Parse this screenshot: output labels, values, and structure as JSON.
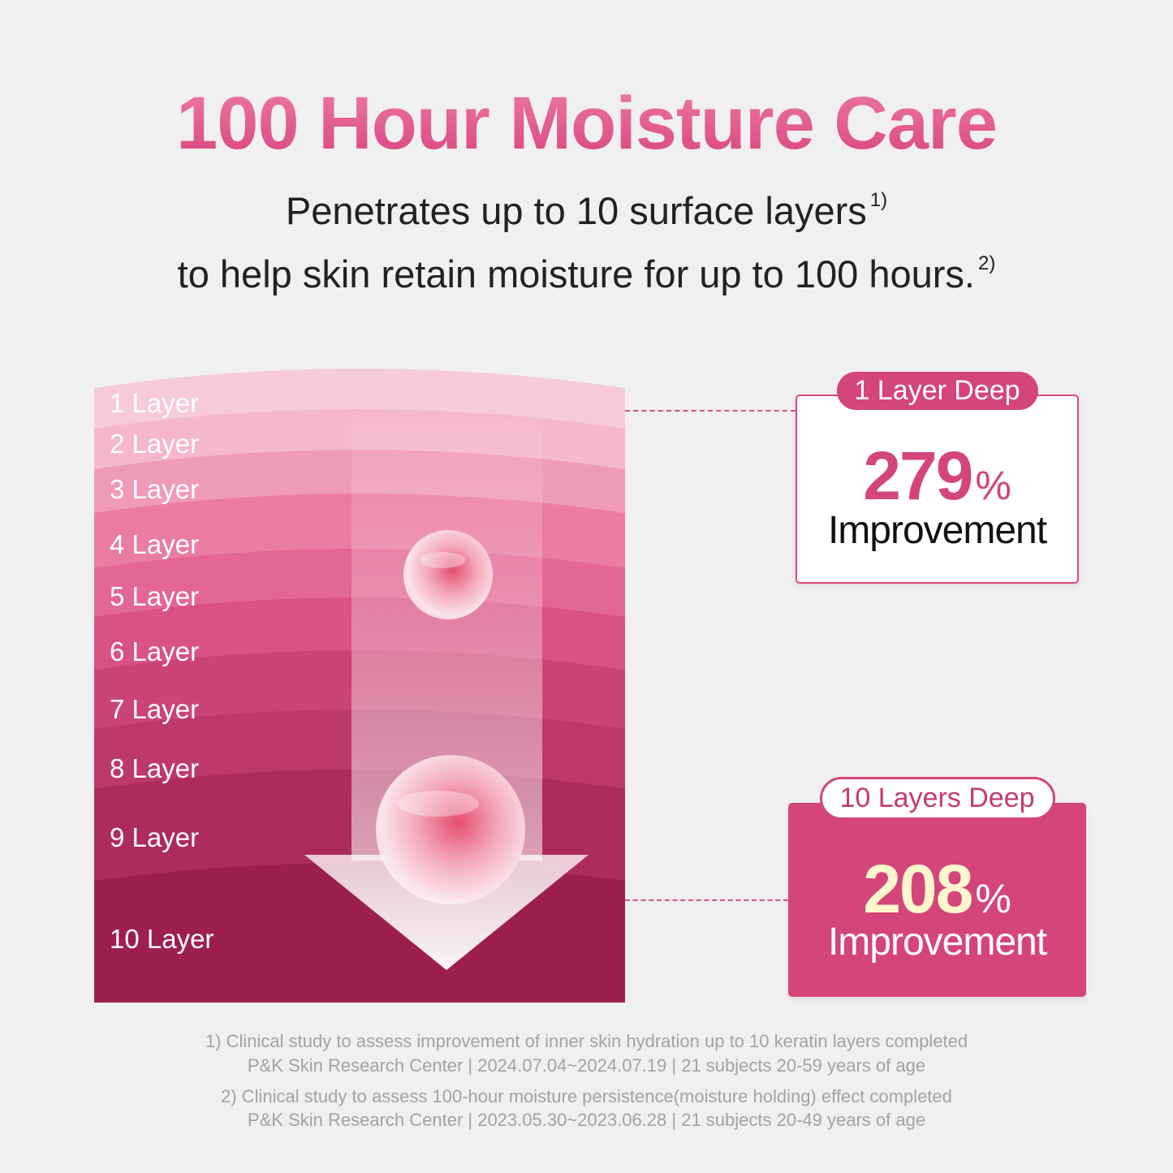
{
  "title": "100 Hour Moisture Care",
  "subtitle": {
    "line1": "Penetrates up to 10 surface layers",
    "line1_ref": "1)",
    "line2": "to help skin retain moisture for up to 100 hours.",
    "line2_ref": "2)"
  },
  "layers": [
    "1 Layer",
    "2 Layer",
    "3 Layer",
    "4 Layer",
    "5 Layer",
    "6 Layer",
    "7 Layer",
    "8 Layer",
    "9 Layer",
    "10 Layer"
  ],
  "layer_colors": [
    "#f7cadb",
    "#f5b7cd",
    "#f09ab9",
    "#ea7ba3",
    "#e36694",
    "#d85284",
    "#cc4476",
    "#bd386b",
    "#ad2b5d",
    "#9c1f4e"
  ],
  "cards": [
    {
      "badge": "1 Layer Deep",
      "value": "279",
      "unit": "%",
      "label": "Improvement"
    },
    {
      "badge": "10 Layers Deep",
      "value": "208",
      "unit": "%",
      "label": "Improvement"
    }
  ],
  "footnotes": [
    {
      "line1": "1) Clinical study to assess improvement of  inner skin hydration up to 10 keratin layers completed",
      "line2": "P&K Skin Research Center | 2024.07.04~2024.07.19 | 21 subjects 20-59 years of age"
    },
    {
      "line1": "2) Clinical study to assess 100-hour moisture persistence(moisture holding) effect completed",
      "line2": "P&K Skin Research Center | 2023.05.30~2023.06.28 | 21 subjects 20-49 years of age"
    }
  ],
  "colors": {
    "accent": "#d4457b",
    "highlight": "#fff7cc"
  }
}
